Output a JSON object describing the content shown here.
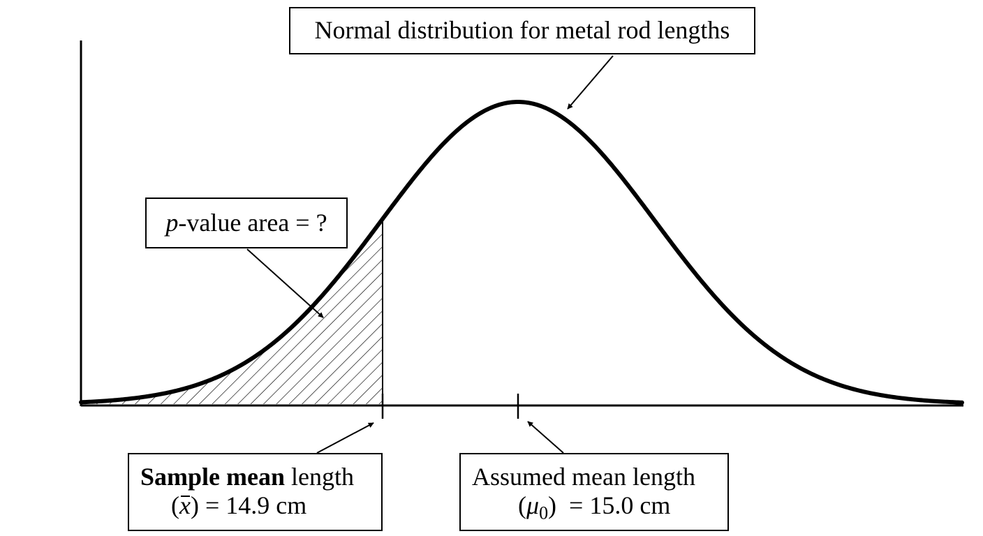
{
  "title": "Normal distribution for metal rod lengths",
  "pvalue_label": {
    "var": "p",
    "text": "-value area = ?"
  },
  "sample_mean": {
    "bold": "Sample mean",
    "rest": " length",
    "open": "(",
    "symbol": "x",
    "close": ")",
    "value": " = 14.9 cm"
  },
  "assumed_mean": {
    "line1": "Assumed mean length",
    "open": "(",
    "symbol": "μ",
    "subscript": "0",
    "close": ")",
    "value": "  = 15.0 cm"
  },
  "distribution": {
    "mean": 15.0,
    "sample_mean": 14.9,
    "shaded_region": "left tail below sample mean",
    "shading": "diagonal hatch"
  }
}
